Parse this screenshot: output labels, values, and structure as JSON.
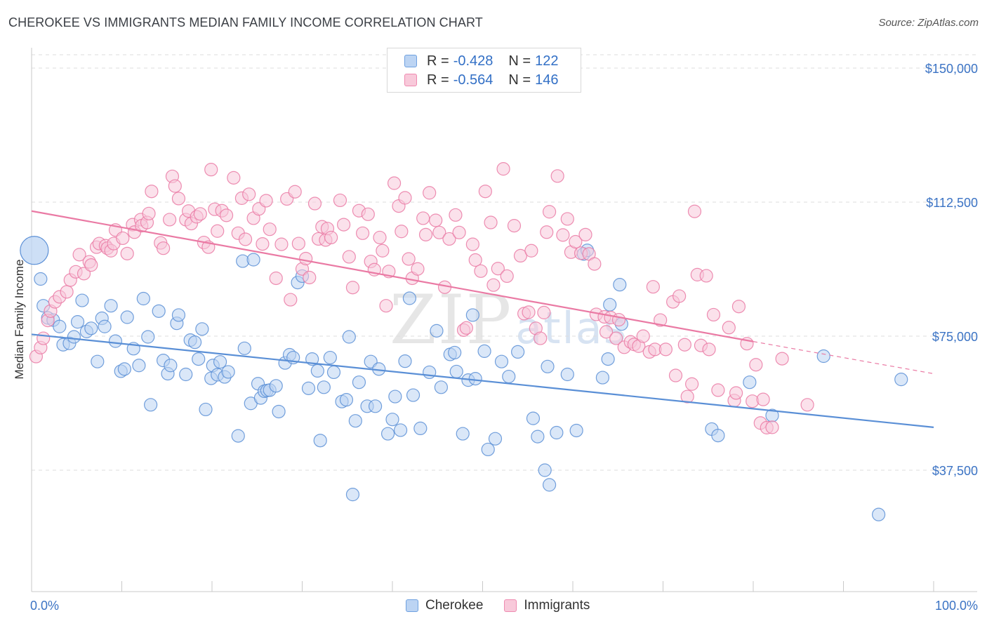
{
  "title": "CHEROKEE VS IMMIGRANTS MEDIAN FAMILY INCOME CORRELATION CHART",
  "source": "Source: ZipAtlas.com",
  "watermark": {
    "main": "ZIP",
    "sub": "atlas"
  },
  "legend": {
    "r_label": "R =",
    "n_label": "N =",
    "rows": [
      {
        "r": "-0.428",
        "n": "122",
        "color": "#6fa1e0",
        "fill": "#bcd4f3"
      },
      {
        "r": "-0.564",
        "n": "146",
        "color": "#ef8ab0",
        "fill": "#f8c9da"
      }
    ]
  },
  "bottom_legend": [
    "Cherokee",
    "Immigrants"
  ],
  "chart_data": {
    "type": "scatter",
    "xlabel": "",
    "ylabel": "Median Family Income",
    "x_tick_labels": [
      "0.0%",
      "100.0%"
    ],
    "xlim": [
      0,
      100
    ],
    "ylim": [
      0,
      155000
    ],
    "y_ticks": [
      37500,
      75000,
      112500,
      150000
    ],
    "y_tick_labels": [
      "$37,500",
      "$75,000",
      "$112,500",
      "$150,000"
    ],
    "grid": "horizontal dashed",
    "series": [
      {
        "name": "Cherokee",
        "color": "#5a8fd6",
        "fill": "#bcd4f3",
        "trend": {
          "x0": 0,
          "y0": 75500,
          "x1": 100,
          "y1": 49500
        },
        "big_point": {
          "x": 0.3,
          "y": 99000
        },
        "points": [
          [
            1,
            91
          ],
          [
            1.3,
            83.5
          ],
          [
            1.8,
            80.1
          ],
          [
            2.4,
            79.5
          ],
          [
            3.1,
            77.7
          ],
          [
            3.5,
            72.6
          ],
          [
            4.2,
            73
          ],
          [
            4.7,
            74.8
          ],
          [
            5.1,
            79
          ],
          [
            5.6,
            85
          ],
          [
            6.1,
            76.3
          ],
          [
            6.6,
            77.2
          ],
          [
            7.3,
            67.9
          ],
          [
            7.8,
            80
          ],
          [
            8.1,
            77.7
          ],
          [
            8.8,
            83.5
          ],
          [
            9.3,
            73.6
          ],
          [
            9.9,
            65.2
          ],
          [
            10.3,
            65.8
          ],
          [
            10.6,
            80.3
          ],
          [
            11.3,
            71.5
          ],
          [
            11.9,
            66.8
          ],
          [
            12.4,
            85.5
          ],
          [
            12.9,
            74.8
          ],
          [
            13.2,
            55.8
          ],
          [
            14.1,
            82
          ],
          [
            14.6,
            68.2
          ],
          [
            15.1,
            64.5
          ],
          [
            15.4,
            66.8
          ],
          [
            16.1,
            78.6
          ],
          [
            16.3,
            80.9
          ],
          [
            17.1,
            64.3
          ],
          [
            17.6,
            73.9
          ],
          [
            18.1,
            73.3
          ],
          [
            18.5,
            68.6
          ],
          [
            18.9,
            77
          ],
          [
            19.3,
            54.5
          ],
          [
            19.9,
            63.2
          ],
          [
            20.1,
            66.8
          ],
          [
            20.6,
            64.2
          ],
          [
            20.9,
            67.8
          ],
          [
            21.4,
            63.6
          ],
          [
            21.8,
            65
          ],
          [
            22.9,
            47.1
          ],
          [
            23.4,
            96
          ],
          [
            23.6,
            71.6
          ],
          [
            24.3,
            56.2
          ],
          [
            24.6,
            96.4
          ],
          [
            25.1,
            61.7
          ],
          [
            25.4,
            57.7
          ],
          [
            25.8,
            59.6
          ],
          [
            26.1,
            59.8
          ],
          [
            26.4,
            59.9
          ],
          [
            27.1,
            61.1
          ],
          [
            27.4,
            53.9
          ],
          [
            28.1,
            67.5
          ],
          [
            28.6,
            69.8
          ],
          [
            29,
            69
          ],
          [
            29.5,
            90
          ],
          [
            30,
            91.8
          ],
          [
            30.7,
            60.4
          ],
          [
            31.1,
            68.6
          ],
          [
            31.7,
            65.3
          ],
          [
            32,
            45.8
          ],
          [
            32.4,
            60.7
          ],
          [
            33.1,
            69
          ],
          [
            33.5,
            64.9
          ],
          [
            34.4,
            56.7
          ],
          [
            34.9,
            57.2
          ],
          [
            35.2,
            74.8
          ],
          [
            35.6,
            30.7
          ],
          [
            35.9,
            51.3
          ],
          [
            36.3,
            62.1
          ],
          [
            37.2,
            55.4
          ],
          [
            37.6,
            67.9
          ],
          [
            38.1,
            55.4
          ],
          [
            38.5,
            65.8
          ],
          [
            39.5,
            47.7
          ],
          [
            40,
            51.7
          ],
          [
            40.3,
            58.1
          ],
          [
            40.9,
            48.7
          ],
          [
            41.4,
            68
          ],
          [
            41.9,
            85.6
          ],
          [
            42.3,
            58.5
          ],
          [
            43.1,
            49.2
          ],
          [
            44.1,
            64.9
          ],
          [
            44.9,
            76.5
          ],
          [
            45.4,
            60.7
          ],
          [
            46.4,
            69.9
          ],
          [
            46.9,
            70.4
          ],
          [
            47.1,
            65.1
          ],
          [
            47.8,
            47.7
          ],
          [
            48.4,
            62.7
          ],
          [
            48.9,
            80.9
          ],
          [
            49.2,
            63.1
          ],
          [
            50.2,
            70.8
          ],
          [
            50.6,
            43.3
          ],
          [
            51.4,
            46.3
          ],
          [
            52.1,
            67.9
          ],
          [
            52.9,
            63.7
          ],
          [
            53.9,
            70.6
          ],
          [
            55.6,
            52
          ],
          [
            56.1,
            46.9
          ],
          [
            56.9,
            37.5
          ],
          [
            57.2,
            66.5
          ],
          [
            57.4,
            33.4
          ],
          [
            58.2,
            48
          ],
          [
            59.4,
            64.3
          ],
          [
            60.4,
            48.6
          ],
          [
            61.2,
            98
          ],
          [
            61.6,
            99
          ],
          [
            63.3,
            63.4
          ],
          [
            63.9,
            68.6
          ],
          [
            64.1,
            83.8
          ],
          [
            65.2,
            89.4
          ],
          [
            65.4,
            78.4
          ],
          [
            75.4,
            49
          ],
          [
            76.1,
            47.2
          ],
          [
            79.6,
            62.1
          ],
          [
            82.1,
            52.8
          ],
          [
            87.8,
            69.4
          ],
          [
            93.9,
            25.1
          ],
          [
            96.4,
            62.9
          ]
        ]
      },
      {
        "name": "Immigrants",
        "color": "#ea7aa4",
        "fill": "#f8c9da",
        "trend": {
          "x0": 0,
          "y0": 110000,
          "x1": 80,
          "y1": 73500,
          "dash_x1": 100,
          "dash_y1": 64500
        },
        "points": [
          [
            0.5,
            69.3
          ],
          [
            1,
            71.8
          ],
          [
            1.3,
            74.4
          ],
          [
            1.8,
            79.4
          ],
          [
            2.1,
            82
          ],
          [
            2.6,
            84.6
          ],
          [
            3.1,
            86
          ],
          [
            3.9,
            87.4
          ],
          [
            4.3,
            90.7
          ],
          [
            4.9,
            93
          ],
          [
            5.3,
            97.8
          ],
          [
            5.8,
            92.5
          ],
          [
            6.4,
            95.8
          ],
          [
            6.6,
            94.9
          ],
          [
            7.2,
            99.9
          ],
          [
            7.5,
            100.9
          ],
          [
            8.2,
            100.3
          ],
          [
            8.4,
            99.6
          ],
          [
            8.8,
            98.9
          ],
          [
            9.1,
            100.9
          ],
          [
            9.3,
            104.7
          ],
          [
            10.1,
            102.4
          ],
          [
            10.6,
            98.1
          ],
          [
            11.2,
            106.2
          ],
          [
            11.4,
            104.1
          ],
          [
            12.1,
            107.6
          ],
          [
            12.2,
            105.9
          ],
          [
            12.8,
            106.8
          ],
          [
            13,
            109.3
          ],
          [
            13.3,
            115.5
          ],
          [
            14.3,
            101.1
          ],
          [
            14.6,
            99.6
          ],
          [
            15.3,
            107.6
          ],
          [
            15.6,
            119.7
          ],
          [
            15.9,
            117
          ],
          [
            16.3,
            113.5
          ],
          [
            17.1,
            107.6
          ],
          [
            17.4,
            110
          ],
          [
            17.7,
            106.5
          ],
          [
            18.3,
            108.4
          ],
          [
            18.7,
            109.2
          ],
          [
            19.1,
            101.2
          ],
          [
            19.6,
            99.9
          ],
          [
            19.9,
            121.6
          ],
          [
            20.3,
            110.5
          ],
          [
            20.6,
            104.4
          ],
          [
            21.1,
            110.1
          ],
          [
            21.6,
            108.8
          ],
          [
            22.4,
            119.3
          ],
          [
            22.9,
            103.8
          ],
          [
            23.3,
            113.6
          ],
          [
            23.7,
            102.1
          ],
          [
            24.1,
            114.7
          ],
          [
            24.6,
            108
          ],
          [
            25.2,
            110.6
          ],
          [
            25.6,
            100.8
          ],
          [
            26,
            112.9
          ],
          [
            26.4,
            104.9
          ],
          [
            27.1,
            91.2
          ],
          [
            27.7,
            100.7
          ],
          [
            28.3,
            113.4
          ],
          [
            28.7,
            85.2
          ],
          [
            29.2,
            115.4
          ],
          [
            29.6,
            100.9
          ],
          [
            30,
            93.8
          ],
          [
            30.4,
            96.7
          ],
          [
            30.8,
            91.4
          ],
          [
            31.4,
            112.1
          ],
          [
            31.8,
            102.2
          ],
          [
            32.2,
            105.6
          ],
          [
            32.6,
            101.9
          ],
          [
            32.8,
            105.1
          ],
          [
            33.2,
            102.6
          ],
          [
            34.2,
            113
          ],
          [
            34.6,
            106.2
          ],
          [
            35.2,
            97.2
          ],
          [
            35.6,
            88.6
          ],
          [
            36.3,
            110.1
          ],
          [
            36.7,
            103.8
          ],
          [
            37.3,
            109.1
          ],
          [
            37.6,
            95.9
          ],
          [
            38,
            93.6
          ],
          [
            38.6,
            102.6
          ],
          [
            38.9,
            98.9
          ],
          [
            39.3,
            83.5
          ],
          [
            39.6,
            93.1
          ],
          [
            40.2,
            117.8
          ],
          [
            40.7,
            111.4
          ],
          [
            41,
            104.3
          ],
          [
            41.4,
            113.7
          ],
          [
            41.8,
            96.6
          ],
          [
            42.2,
            91.2
          ],
          [
            42.8,
            93.8
          ],
          [
            43.4,
            108
          ],
          [
            43.7,
            103.4
          ],
          [
            44.1,
            115.1
          ],
          [
            44.8,
            107.4
          ],
          [
            45.2,
            104
          ],
          [
            45.8,
            88.7
          ],
          [
            46.3,
            102.2
          ],
          [
            47,
            108.9
          ],
          [
            47.4,
            104
          ],
          [
            47.9,
            76.7
          ],
          [
            48.2,
            77.3
          ],
          [
            48.9,
            100.7
          ],
          [
            49.2,
            96.3
          ],
          [
            49.8,
            93.2
          ],
          [
            50.3,
            115.5
          ],
          [
            50.9,
            106.8
          ],
          [
            51.2,
            89.3
          ],
          [
            51.7,
            93.9
          ],
          [
            52.3,
            121.8
          ],
          [
            52.7,
            91.8
          ],
          [
            53.5,
            105.9
          ],
          [
            54.2,
            97.5
          ],
          [
            54.6,
            81.3
          ],
          [
            55.1,
            81.7
          ],
          [
            55.4,
            98.9
          ],
          [
            55.9,
            77.2
          ],
          [
            56.4,
            74.4
          ],
          [
            56.8,
            81.6
          ],
          [
            57.1,
            104.1
          ],
          [
            57.4,
            109.8
          ],
          [
            58.3,
            119.8
          ],
          [
            58.9,
            103.3
          ],
          [
            59.4,
            107.8
          ],
          [
            59.8,
            98.5
          ],
          [
            60.3,
            101.4
          ],
          [
            60.9,
            98.2
          ],
          [
            61.4,
            103.4
          ],
          [
            61.8,
            98
          ],
          [
            62.4,
            95.2
          ],
          [
            62.6,
            81.1
          ],
          [
            63.5,
            80.4
          ],
          [
            63.7,
            76.2
          ],
          [
            64.2,
            80.2
          ],
          [
            64.8,
            74.4
          ],
          [
            65.1,
            79.6
          ],
          [
            65.7,
            71.9
          ],
          [
            66.4,
            73.4
          ],
          [
            66.8,
            72.7
          ],
          [
            67.3,
            72.2
          ],
          [
            67.8,
            75
          ],
          [
            68.5,
            70.6
          ],
          [
            68.9,
            88.8
          ],
          [
            69.1,
            71.3
          ],
          [
            69.7,
            79.5
          ],
          [
            70.3,
            71.3
          ],
          [
            71.1,
            84.6
          ],
          [
            71.4,
            64
          ],
          [
            71.8,
            86.2
          ],
          [
            72.4,
            72.6
          ],
          [
            72.7,
            58.1
          ],
          [
            73.2,
            61.6
          ],
          [
            73.5,
            109.9
          ],
          [
            73.8,
            92.2
          ],
          [
            74.2,
            72.4
          ],
          [
            74.8,
            91.9
          ],
          [
            75.1,
            71.3
          ],
          [
            75.6,
            81
          ],
          [
            76.1,
            59.9
          ],
          [
            77.3,
            77.4
          ],
          [
            77.9,
            57
          ],
          [
            78.1,
            59.1
          ],
          [
            78.4,
            83.3
          ],
          [
            79.3,
            72.9
          ],
          [
            79.9,
            56.8
          ],
          [
            80.3,
            67
          ],
          [
            80.8,
            50.7
          ],
          [
            81.1,
            57.3
          ],
          [
            81.5,
            49.4
          ],
          [
            82.1,
            49.5
          ],
          [
            83.2,
            68.7
          ],
          [
            86,
            55.8
          ]
        ]
      }
    ]
  }
}
